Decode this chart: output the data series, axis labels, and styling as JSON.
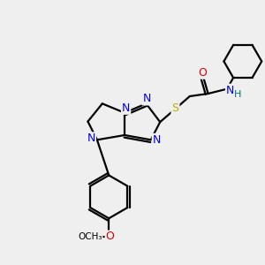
{
  "background_color": "#efefef",
  "atom_colors": {
    "C": "#000000",
    "N": "#0000ee",
    "O": "#dd0000",
    "S": "#bbaa00",
    "H": "#007070"
  },
  "figsize": [
    3.0,
    3.0
  ],
  "dpi": 100
}
